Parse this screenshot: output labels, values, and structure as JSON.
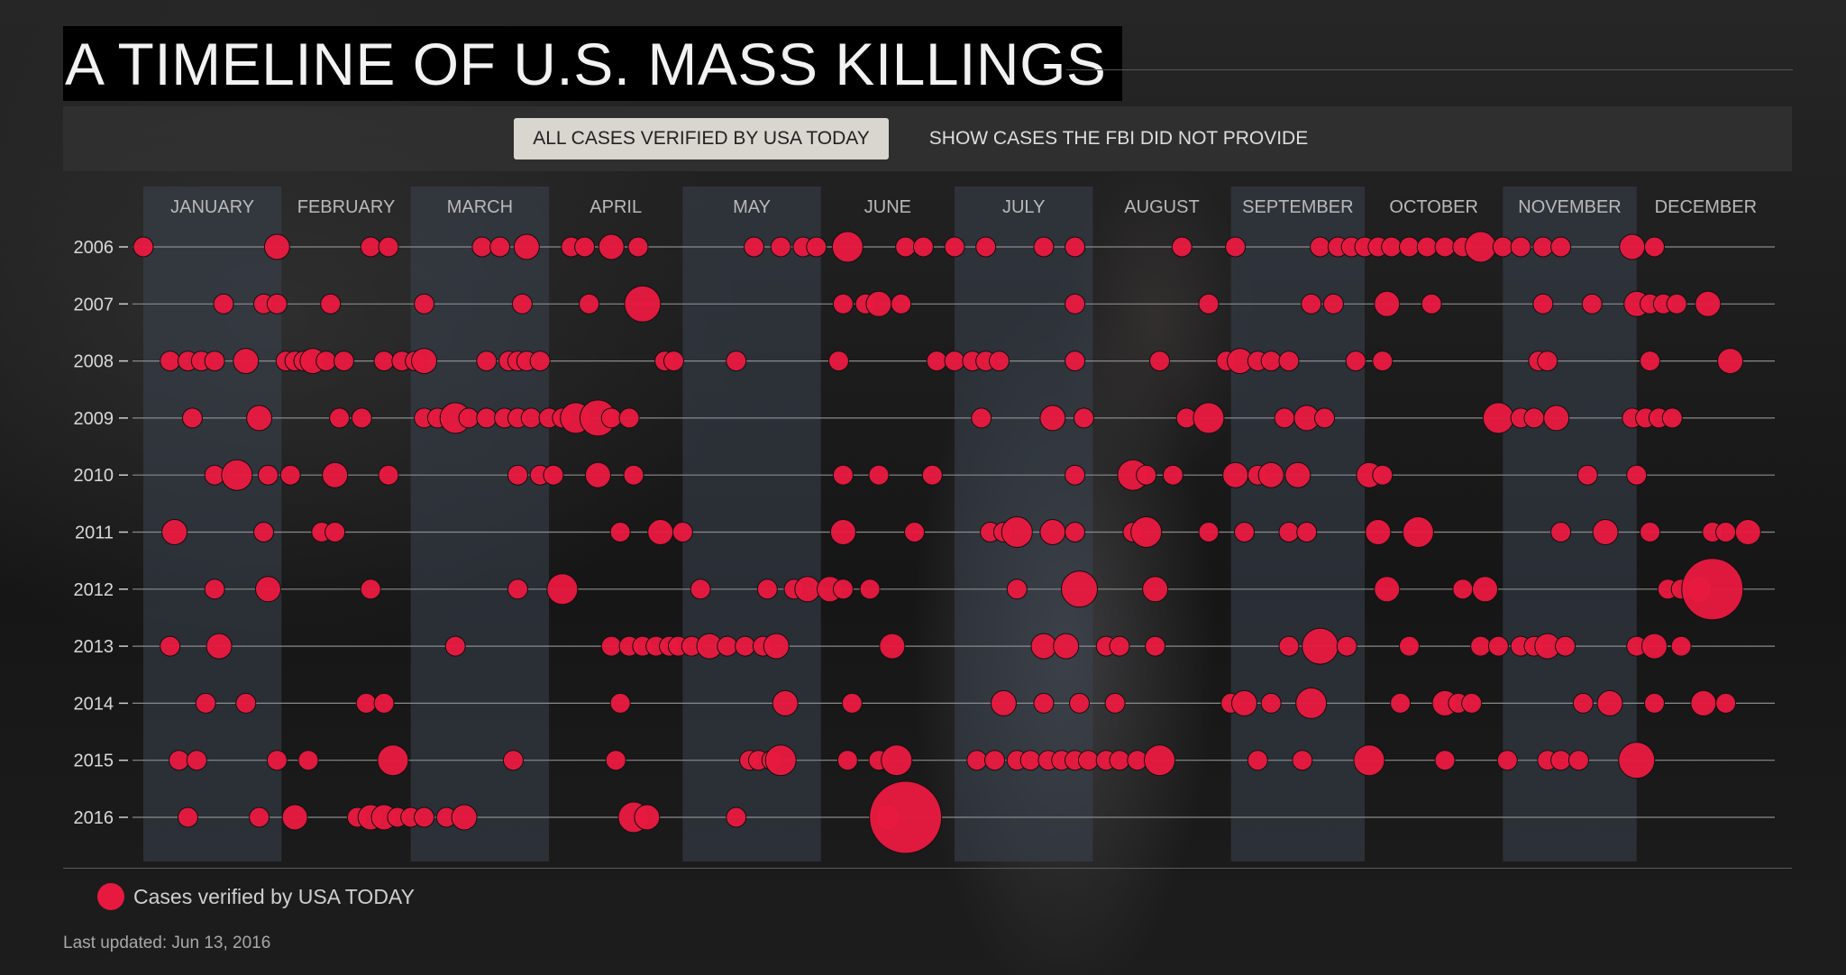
{
  "title": "A TIMELINE OF U.S. MASS KILLINGS",
  "toggle": {
    "active_label": "ALL CASES VERIFIED BY USA TODAY",
    "inactive_label": "SHOW CASES THE FBI DID NOT PROVIDE"
  },
  "legend": {
    "label": "Cases verified by USA TODAY"
  },
  "updated": "Last updated: Jun 13, 2016",
  "colors": {
    "dot": "#e8193f",
    "month_band": "#3a4350",
    "line": "#8a8a8a",
    "text": "#cfcfcf"
  },
  "chart_data": {
    "type": "scatter",
    "x_axis": "day of year",
    "months": [
      "JANUARY",
      "FEBRUARY",
      "MARCH",
      "APRIL",
      "MAY",
      "JUNE",
      "JULY",
      "AUGUST",
      "SEPTEMBER",
      "OCTOBER",
      "NOVEMBER",
      "DECEMBER"
    ],
    "years": [
      "2006",
      "2007",
      "2008",
      "2009",
      "2010",
      "2011",
      "2012",
      "2013",
      "2014",
      "2015",
      "2016"
    ],
    "size_scale": [
      "small",
      "medium",
      "large",
      "xlarge",
      "xxlarge"
    ],
    "events": [
      {
        "year": "2006",
        "days": [
          1,
          31,
          52,
          56,
          77,
          81,
          87,
          97,
          100,
          106,
          112,
          138,
          144,
          149,
          152,
          159,
          172,
          176,
          183,
          190,
          203,
          210,
          234,
          246,
          265,
          269,
          272,
          275,
          278,
          281,
          285,
          289,
          293,
          297,
          301,
          306,
          310,
          315,
          319,
          335,
          340
        ],
        "sizes": [
          1,
          2,
          1,
          1,
          1,
          1,
          2,
          1,
          1,
          2,
          1,
          1,
          1,
          1,
          1,
          3,
          1,
          1,
          1,
          1,
          1,
          1,
          1,
          1,
          1,
          1,
          1,
          1,
          1,
          1,
          1,
          1,
          1,
          1,
          3,
          1,
          1,
          1,
          1,
          2,
          1
        ]
      },
      {
        "year": "2007",
        "days": [
          19,
          28,
          31,
          43,
          64,
          86,
          101,
          113,
          158,
          163,
          166,
          171,
          210,
          240,
          263,
          268,
          280,
          290,
          315,
          326,
          336,
          339,
          342,
          345,
          352
        ],
        "sizes": [
          1,
          1,
          1,
          1,
          1,
          1,
          1,
          4,
          1,
          1,
          2,
          1,
          1,
          1,
          1,
          1,
          2,
          1,
          1,
          1,
          2,
          1,
          1,
          1,
          2
        ]
      },
      {
        "year": "2008",
        "days": [
          7,
          11,
          14,
          17,
          24,
          33,
          35,
          37,
          39,
          42,
          46,
          55,
          59,
          62,
          64,
          78,
          83,
          85,
          87,
          90,
          118,
          120,
          134,
          157,
          179,
          183,
          187,
          190,
          193,
          210,
          229,
          244,
          247,
          251,
          254,
          258,
          273,
          279,
          314,
          316,
          339,
          357
        ],
        "sizes": [
          1,
          1,
          1,
          1,
          2,
          1,
          1,
          1,
          2,
          1,
          1,
          1,
          1,
          1,
          2,
          1,
          1,
          1,
          1,
          1,
          1,
          1,
          1,
          1,
          1,
          1,
          1,
          1,
          1,
          1,
          1,
          1,
          2,
          1,
          1,
          1,
          1,
          1,
          1,
          1,
          1,
          2
        ]
      },
      {
        "year": "2009",
        "days": [
          12,
          27,
          45,
          50,
          64,
          67,
          71,
          74,
          78,
          82,
          85,
          88,
          92,
          95,
          98,
          103,
          106,
          110,
          189,
          205,
          212,
          235,
          240,
          257,
          262,
          266,
          305,
          310,
          313,
          318,
          335,
          338,
          341,
          344
        ],
        "sizes": [
          1,
          2,
          1,
          1,
          1,
          1,
          3,
          1,
          1,
          1,
          1,
          1,
          1,
          1,
          3,
          4,
          1,
          1,
          1,
          2,
          1,
          1,
          3,
          1,
          2,
          1,
          3,
          1,
          1,
          2,
          1,
          1,
          1,
          1
        ]
      },
      {
        "year": "2010",
        "days": [
          17,
          22,
          29,
          34,
          44,
          56,
          85,
          90,
          93,
          103,
          111,
          158,
          166,
          178,
          210,
          223,
          226,
          232,
          246,
          251,
          254,
          260,
          276,
          279,
          325,
          336
        ],
        "sizes": [
          1,
          3,
          1,
          1,
          2,
          1,
          1,
          1,
          1,
          2,
          1,
          1,
          1,
          1,
          1,
          3,
          1,
          1,
          2,
          1,
          2,
          2,
          2,
          1,
          1,
          1
        ]
      },
      {
        "year": "2011",
        "days": [
          8,
          28,
          41,
          44,
          108,
          117,
          122,
          158,
          174,
          191,
          194,
          197,
          205,
          210,
          223,
          226,
          240,
          248,
          258,
          262,
          278,
          287,
          319,
          329,
          339,
          353,
          356,
          361
        ],
        "sizes": [
          2,
          1,
          1,
          1,
          1,
          2,
          1,
          2,
          1,
          1,
          1,
          3,
          2,
          1,
          1,
          3,
          1,
          1,
          1,
          1,
          2,
          3,
          1,
          2,
          1,
          1,
          1,
          2
        ]
      },
      {
        "year": "2012",
        "days": [
          17,
          29,
          52,
          85,
          95,
          126,
          141,
          147,
          150,
          155,
          158,
          164,
          197,
          211,
          228,
          280,
          297,
          302,
          343,
          346,
          350,
          353
        ],
        "sizes": [
          1,
          2,
          1,
          1,
          3,
          1,
          1,
          1,
          2,
          2,
          1,
          1,
          1,
          4,
          2,
          2,
          1,
          2,
          1,
          1,
          2,
          6
        ]
      },
      {
        "year": "2013",
        "days": [
          7,
          18,
          71,
          106,
          110,
          113,
          116,
          119,
          121,
          124,
          128,
          132,
          136,
          140,
          143,
          169,
          203,
          208,
          217,
          220,
          228,
          258,
          265,
          271,
          285,
          301,
          305,
          310,
          313,
          316,
          320,
          336,
          340,
          346
        ],
        "sizes": [
          1,
          2,
          1,
          1,
          1,
          1,
          1,
          1,
          1,
          1,
          2,
          1,
          1,
          1,
          2,
          2,
          2,
          2,
          1,
          1,
          1,
          1,
          4,
          1,
          1,
          1,
          1,
          1,
          1,
          2,
          1,
          1,
          2,
          1
        ]
      },
      {
        "year": "2014",
        "days": [
          15,
          24,
          51,
          55,
          108,
          145,
          160,
          194,
          203,
          211,
          219,
          245,
          248,
          254,
          263,
          283,
          293,
          296,
          299,
          324,
          330,
          340,
          351,
          356
        ],
        "sizes": [
          1,
          1,
          1,
          1,
          1,
          2,
          1,
          2,
          1,
          1,
          1,
          1,
          2,
          1,
          3,
          1,
          2,
          1,
          1,
          1,
          2,
          1,
          2,
          1
        ]
      },
      {
        "year": "2015",
        "days": [
          9,
          13,
          31,
          38,
          57,
          84,
          107,
          137,
          139,
          142,
          144,
          159,
          166,
          170,
          188,
          192,
          197,
          200,
          204,
          207,
          210,
          213,
          217,
          220,
          224,
          229,
          251,
          261,
          276,
          293,
          307,
          316,
          319,
          323,
          336
        ],
        "sizes": [
          1,
          1,
          1,
          1,
          3,
          1,
          1,
          1,
          1,
          1,
          3,
          1,
          1,
          3,
          1,
          1,
          1,
          1,
          1,
          1,
          1,
          1,
          1,
          1,
          1,
          3,
          1,
          1,
          3,
          1,
          1,
          1,
          1,
          1,
          4
        ]
      },
      {
        "year": "2016",
        "days": [
          11,
          27,
          35,
          49,
          52,
          55,
          58,
          61,
          64,
          69,
          73,
          111,
          114,
          134,
          168,
          172
        ],
        "sizes": [
          1,
          1,
          2,
          1,
          2,
          2,
          1,
          1,
          1,
          1,
          2,
          3,
          2,
          1,
          2,
          7
        ]
      }
    ]
  }
}
